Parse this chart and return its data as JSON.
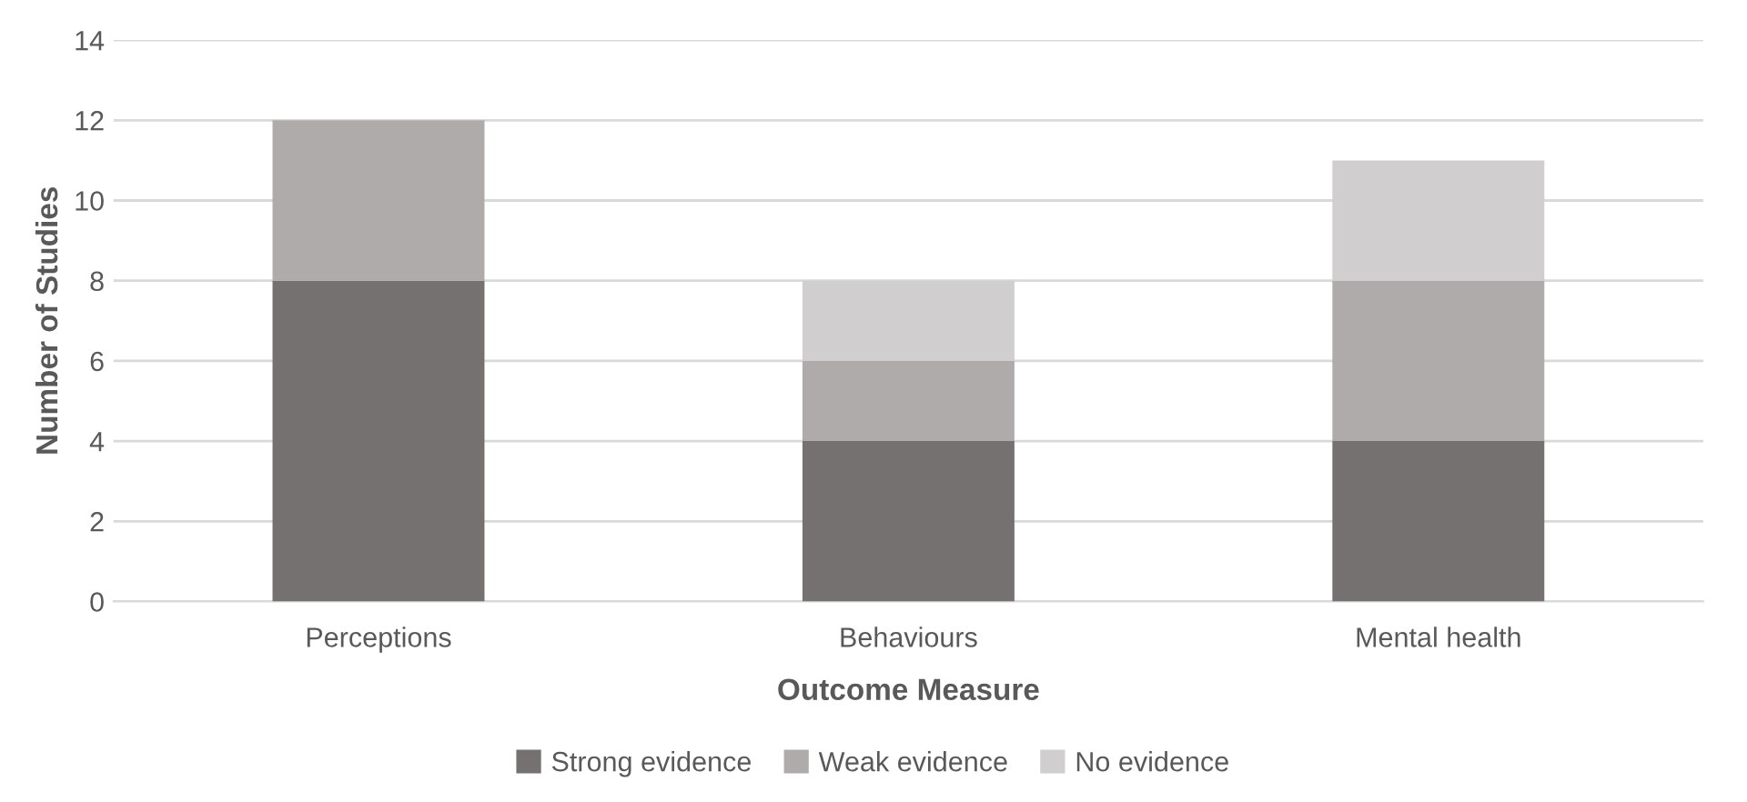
{
  "chart_data": {
    "type": "bar",
    "stacked": true,
    "xlabel": "Outcome Measure",
    "ylabel": "Number of Studies",
    "categories": [
      "Perceptions",
      "Behaviours",
      "Mental health"
    ],
    "series": [
      {
        "name": "Strong evidence",
        "color": "#767171",
        "values": [
          8,
          4,
          4
        ]
      },
      {
        "name": "Weak evidence",
        "color": "#afabab",
        "values": [
          4,
          2,
          4
        ]
      },
      {
        "name": "No evidence",
        "color": "#d0cece",
        "values": [
          0,
          2,
          3
        ]
      }
    ],
    "ylim": [
      0,
      14
    ],
    "yticks": [
      0,
      2,
      4,
      6,
      8,
      10,
      12,
      14
    ],
    "grid": "y",
    "legend": "bottom"
  }
}
